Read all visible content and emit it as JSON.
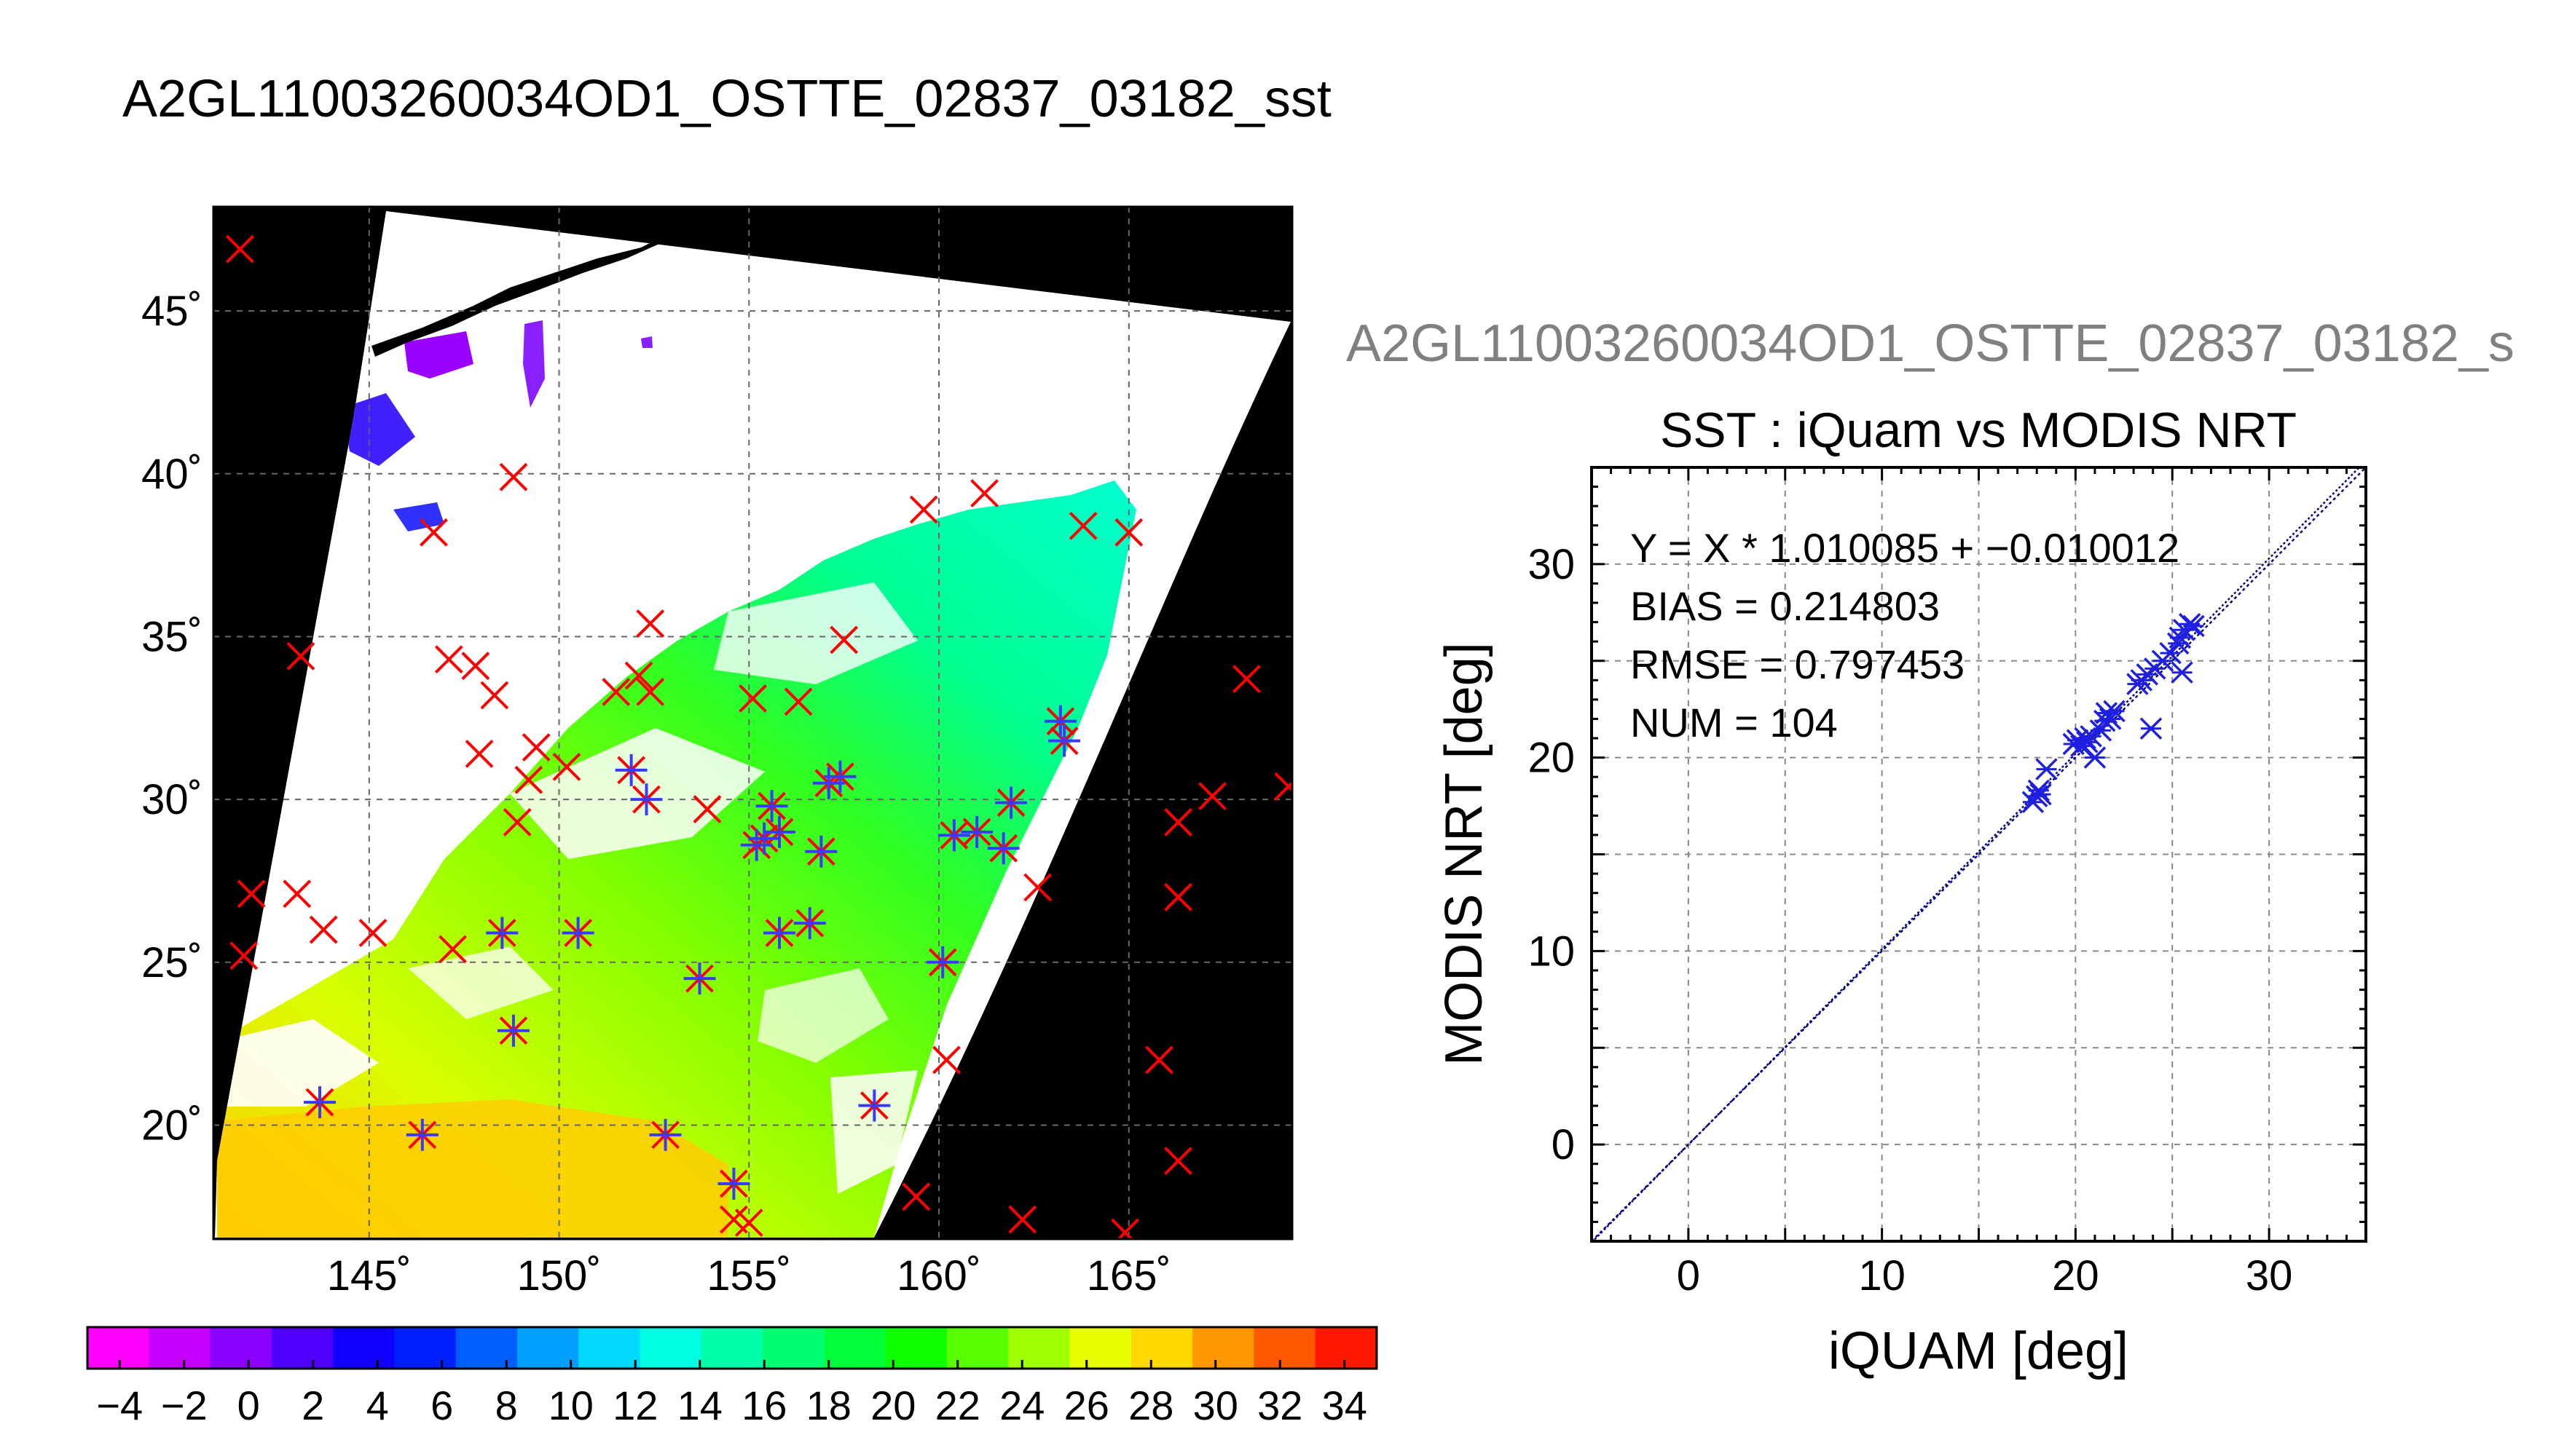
{
  "main_title": "A2GL11003260034OD1_OSTTE_02837_03182_sst",
  "map": {
    "lat_ticks": [
      {
        "value": 45,
        "label": "45˚"
      },
      {
        "value": 40,
        "label": "40˚"
      },
      {
        "value": 35,
        "label": "35˚"
      },
      {
        "value": 30,
        "label": "30˚"
      },
      {
        "value": 25,
        "label": "25˚"
      },
      {
        "value": 20,
        "label": "20˚"
      }
    ],
    "lon_ticks": [
      {
        "value": 145,
        "label": "145˚"
      },
      {
        "value": 150,
        "label": "150˚"
      },
      {
        "value": 155,
        "label": "155˚"
      },
      {
        "value": 160,
        "label": "160˚"
      },
      {
        "value": 165,
        "label": "165˚"
      }
    ],
    "lon_range": [
      140.9,
      169.3
    ],
    "lat_range": [
      16.5,
      48.2
    ],
    "background_color": "#000000",
    "cloud_color": "#ffffff",
    "in_situ_marker_color": "#ff0000",
    "matched_marker_color": "#3a3aff",
    "in_situ_points": [
      [
        141.6,
        46.9
      ],
      [
        141.7,
        25.2
      ],
      [
        141.9,
        27.1
      ],
      [
        143.2,
        34.4
      ],
      [
        143.1,
        27.1
      ],
      [
        143.8,
        26.0
      ],
      [
        143.7,
        20.7
      ],
      [
        145.1,
        25.9
      ],
      [
        146.4,
        19.7
      ],
      [
        146.7,
        38.2
      ],
      [
        147.1,
        34.3
      ],
      [
        147.2,
        25.4
      ],
      [
        147.8,
        34.1
      ],
      [
        147.9,
        31.4
      ],
      [
        148.3,
        33.2
      ],
      [
        148.5,
        25.9
      ],
      [
        148.8,
        22.9
      ],
      [
        148.8,
        39.9
      ],
      [
        148.9,
        29.3
      ],
      [
        149.2,
        30.6
      ],
      [
        149.4,
        31.6
      ],
      [
        150.2,
        31.0
      ],
      [
        150.5,
        25.9
      ],
      [
        151.5,
        33.3
      ],
      [
        151.9,
        30.9
      ],
      [
        152.1,
        33.8
      ],
      [
        152.3,
        30.0
      ],
      [
        152.4,
        33.3
      ],
      [
        152.4,
        35.4
      ],
      [
        152.8,
        19.7
      ],
      [
        153.7,
        24.5
      ],
      [
        153.9,
        29.7
      ],
      [
        154.6,
        18.2
      ],
      [
        154.6,
        17.1
      ],
      [
        155.0,
        17.0
      ],
      [
        155.1,
        33.1
      ],
      [
        155.2,
        28.6
      ],
      [
        155.4,
        28.8
      ],
      [
        155.6,
        29.8
      ],
      [
        155.8,
        29.0
      ],
      [
        155.8,
        25.9
      ],
      [
        156.3,
        33.0
      ],
      [
        156.6,
        26.2
      ],
      [
        156.9,
        28.4
      ],
      [
        157.1,
        30.5
      ],
      [
        157.4,
        30.7
      ],
      [
        157.5,
        34.9
      ],
      [
        158.3,
        20.6
      ],
      [
        159.4,
        17.8
      ],
      [
        159.6,
        38.9
      ],
      [
        160.1,
        25.0
      ],
      [
        160.2,
        22.0
      ],
      [
        160.4,
        28.9
      ],
      [
        161.0,
        29.0
      ],
      [
        161.2,
        39.4
      ],
      [
        161.7,
        28.5
      ],
      [
        161.9,
        29.9
      ],
      [
        162.2,
        17.1
      ],
      [
        162.6,
        27.3
      ],
      [
        163.2,
        32.4
      ],
      [
        163.3,
        31.8
      ],
      [
        163.8,
        38.4
      ],
      [
        165.0,
        38.2
      ],
      [
        164.9,
        16.7
      ],
      [
        165.8,
        22.0
      ],
      [
        166.3,
        18.9
      ],
      [
        166.3,
        27.0
      ],
      [
        166.3,
        29.3
      ],
      [
        167.2,
        30.1
      ],
      [
        168.1,
        33.7
      ],
      [
        169.2,
        30.4
      ]
    ],
    "matched_points": [
      [
        143.7,
        20.7
      ],
      [
        146.4,
        19.7
      ],
      [
        148.5,
        25.9
      ],
      [
        148.8,
        22.9
      ],
      [
        150.5,
        25.9
      ],
      [
        151.9,
        30.9
      ],
      [
        152.3,
        30.0
      ],
      [
        152.8,
        19.7
      ],
      [
        153.7,
        24.5
      ],
      [
        154.6,
        18.2
      ],
      [
        155.2,
        28.6
      ],
      [
        155.4,
        28.8
      ],
      [
        155.6,
        29.8
      ],
      [
        155.8,
        29.0
      ],
      [
        155.8,
        25.9
      ],
      [
        156.6,
        26.2
      ],
      [
        156.9,
        28.4
      ],
      [
        157.1,
        30.5
      ],
      [
        157.4,
        30.7
      ],
      [
        158.3,
        20.6
      ],
      [
        160.1,
        25.0
      ],
      [
        160.4,
        28.9
      ],
      [
        161.0,
        29.0
      ],
      [
        161.7,
        28.5
      ],
      [
        161.9,
        29.9
      ],
      [
        163.2,
        32.4
      ],
      [
        163.3,
        31.8
      ]
    ]
  },
  "colorbar": {
    "min": -5,
    "max": 35,
    "step": 2,
    "labels": [
      "−4",
      "−2",
      "0",
      "2",
      "4",
      "6",
      "8",
      "10",
      "12",
      "14",
      "16",
      "18",
      "20",
      "22",
      "24",
      "26",
      "28",
      "30",
      "32",
      "34"
    ],
    "label_values": [
      -4,
      -2,
      0,
      2,
      4,
      6,
      8,
      10,
      12,
      14,
      16,
      18,
      20,
      22,
      24,
      26,
      28,
      30,
      32,
      34
    ],
    "colors": [
      "#ff00ff",
      "#c400ff",
      "#8a00ff",
      "#5000ff",
      "#1000ff",
      "#0020ff",
      "#0060ff",
      "#00a0ff",
      "#00d8ff",
      "#00ffe0",
      "#00ffa8",
      "#00ff70",
      "#00ff38",
      "#10ff00",
      "#58ff00",
      "#a0ff00",
      "#e8ff00",
      "#ffd800",
      "#ff9800",
      "#ff5800",
      "#ff1800"
    ]
  },
  "scatter": {
    "secondary_title": "A2GL11003260034OD1_OSTTE_02837_03182_s",
    "title": "SST : iQuam vs MODIS NRT",
    "xlabel": "iQUAM [deg]",
    "ylabel": "MODIS NRT [deg]",
    "xlim": [
      -5,
      35
    ],
    "ylim": [
      -5,
      35
    ],
    "xticks": [
      0,
      10,
      20,
      30
    ],
    "yticks": [
      0,
      10,
      20,
      30
    ],
    "grid": true,
    "marker_color": "#1f1fe0",
    "line_color": "#000080",
    "stats": {
      "line1": "Y = X * 1.010085 + −0.010012",
      "line2": "BIAS = 0.214803",
      "line3": "RMSE = 0.797453",
      "line4": "NUM = 104"
    },
    "fit": {
      "slope": 1.010085,
      "intercept": -0.010012
    }
  },
  "chart_data": [
    {
      "type": "heatmap",
      "title": "A2GL11003260034OD1_OSTTE_02837_03182_sst",
      "x_range": [
        140.9,
        169.3
      ],
      "y_range": [
        16.5,
        48.2
      ],
      "x_tick_labels": [
        "145˚",
        "150˚",
        "155˚",
        "160˚",
        "165˚"
      ],
      "y_tick_labels": [
        "20˚",
        "25˚",
        "30˚",
        "35˚",
        "40˚",
        "45˚"
      ],
      "colorbar_range": [
        -5,
        35
      ],
      "grid": true
    },
    {
      "type": "scatter",
      "title": "SST : iQuam vs MODIS NRT",
      "xlabel": "iQUAM [deg]",
      "ylabel": "MODIS NRT [deg]",
      "xlim": [
        -5,
        35
      ],
      "ylim": [
        -5,
        35
      ],
      "grid": true,
      "x": [
        17.8,
        18.0,
        18.1,
        18.2,
        18.5,
        19.9,
        20.1,
        20.3,
        20.5,
        20.6,
        20.8,
        21.0,
        21.3,
        21.5,
        21.6,
        21.8,
        22.0,
        23.2,
        23.4,
        23.7,
        24.1,
        24.5,
        24.9,
        25.3,
        25.4,
        25.6,
        25.9,
        26.1,
        23.9,
        25.5
      ],
      "y": [
        17.7,
        18.0,
        18.3,
        18.1,
        19.4,
        20.7,
        20.9,
        20.6,
        21.0,
        20.8,
        21.1,
        20.0,
        21.4,
        21.9,
        22.3,
        22.0,
        22.4,
        23.8,
        24.0,
        24.3,
        24.6,
        25.0,
        25.4,
        25.9,
        26.2,
        26.6,
        26.9,
        26.8,
        21.5,
        24.4
      ],
      "series": [
        {
          "name": "",
          "marker": "x/+ star"
        }
      ]
    }
  ]
}
